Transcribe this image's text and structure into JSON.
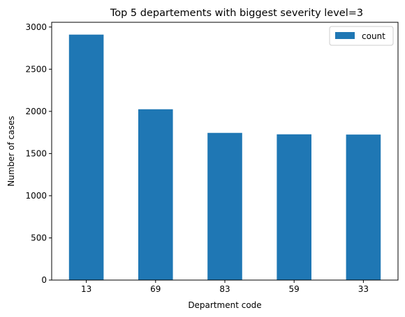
{
  "chart_data": {
    "type": "bar",
    "title": "Top 5 departements with biggest severity level=3",
    "xlabel": "Department code",
    "ylabel": "Number of cases",
    "categories": [
      "13",
      "69",
      "83",
      "59",
      "33"
    ],
    "series": [
      {
        "name": "count",
        "values": [
          2910,
          2025,
          1745,
          1728,
          1725
        ],
        "color": "#1f77b4"
      }
    ],
    "ylim": [
      0,
      3056
    ],
    "yticks": [
      0,
      500,
      1000,
      1500,
      2000,
      2500,
      3000
    ],
    "grid": false,
    "legend_position": "top-right"
  }
}
